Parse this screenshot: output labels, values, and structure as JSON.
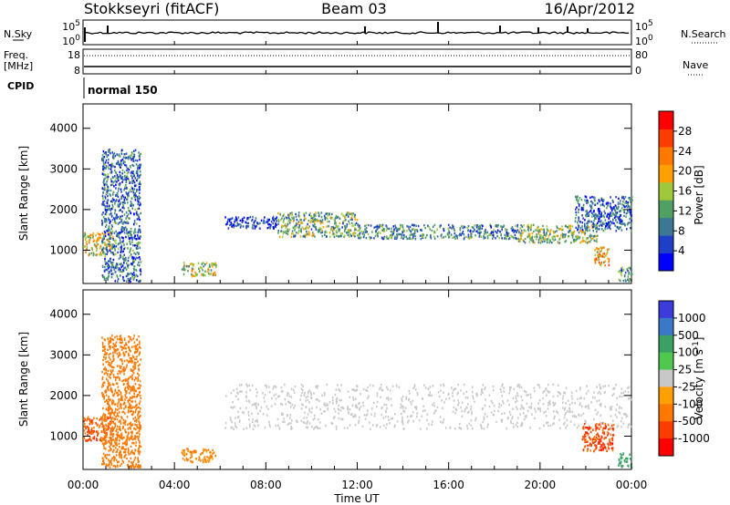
{
  "header": {
    "station": "Stokkseyri (fitACF)",
    "beam": "Beam 03",
    "date": "16/Apr/2012"
  },
  "top_strips": {
    "nsky": {
      "label": "N.Sky",
      "left_top": "10^5",
      "left_bottom": "10^0",
      "right_top": "10^5",
      "right_bottom": "10^0"
    },
    "nsearch_label": "N.Search",
    "freq": {
      "label_line1": "Freq.",
      "label_line2": "[MHz]",
      "left_top": "18",
      "left_bottom": "8",
      "right_top": "80",
      "right_bottom": "0"
    },
    "nave_label": "Nave",
    "cpid": {
      "label": "CPID",
      "value": "normal 150"
    }
  },
  "colors": {
    "power_scale": [
      "#0000ff",
      "#1e3fc8",
      "#3c7896",
      "#50a064",
      "#a0c83c",
      "#ffa000",
      "#ff7800",
      "#ff3c00",
      "#ff0000"
    ],
    "velocity_scale": [
      "#3c3cdc",
      "#3c78c8",
      "#3ca064",
      "#50c850",
      "#c8c8c8",
      "#ffa000",
      "#ff7800",
      "#ff3c00",
      "#ff0000"
    ]
  },
  "chart_data": [
    {
      "type": "heatmap",
      "title": "Power",
      "ylabel": "Slant Range [km]",
      "xlabel": "",
      "x_range": [
        0,
        24
      ],
      "ylim": [
        180,
        4600
      ],
      "yticks": [
        1000,
        2000,
        3000,
        4000
      ],
      "colorbar": {
        "label": "Power [dB]",
        "ticks": [
          "4",
          "8",
          "12",
          "16",
          "20",
          "24",
          "28"
        ],
        "range": [
          0,
          32
        ]
      },
      "regions": [
        {
          "t0": 0.0,
          "t1": 1.3,
          "r0": 900,
          "r1": 1450,
          "value": 18
        },
        {
          "t0": 0.8,
          "t1": 2.5,
          "r0": 250,
          "r1": 3500,
          "value": 8
        },
        {
          "t0": 4.3,
          "t1": 5.8,
          "r0": 380,
          "r1": 720,
          "value": 16
        },
        {
          "t0": 6.2,
          "t1": 8.5,
          "r0": 1550,
          "r1": 1850,
          "value": 5
        },
        {
          "t0": 8.5,
          "t1": 12.0,
          "r0": 1350,
          "r1": 1950,
          "value": 13
        },
        {
          "t0": 12.0,
          "t1": 19.0,
          "r0": 1300,
          "r1": 1650,
          "value": 10
        },
        {
          "t0": 19.0,
          "t1": 22.5,
          "r0": 1200,
          "r1": 1650,
          "value": 14
        },
        {
          "t0": 21.5,
          "t1": 24.0,
          "r0": 1500,
          "r1": 2350,
          "value": 7
        },
        {
          "t0": 22.3,
          "t1": 23.0,
          "r0": 650,
          "r1": 1100,
          "value": 20
        },
        {
          "t0": 23.4,
          "t1": 24.0,
          "r0": 250,
          "r1": 600,
          "value": 10
        }
      ]
    },
    {
      "type": "heatmap",
      "title": "Velocity",
      "ylabel": "Slant Range [km]",
      "xlabel": "Time UT",
      "x_range": [
        0,
        24
      ],
      "ylim": [
        180,
        4600
      ],
      "yticks": [
        1000,
        2000,
        3000,
        4000
      ],
      "xticks": [
        "00:00",
        "04:00",
        "08:00",
        "12:00",
        "16:00",
        "20:00",
        "00:00"
      ],
      "colorbar": {
        "label": "Velocity [m s^-1]",
        "ticks": [
          "1000",
          "500",
          "100",
          "25",
          "-25",
          "-100",
          "-500",
          "-1000"
        ]
      },
      "regions": [
        {
          "t0": 0.0,
          "t1": 1.3,
          "r0": 900,
          "r1": 1500,
          "value": -500
        },
        {
          "t0": 0.8,
          "t1": 2.5,
          "r0": 250,
          "r1": 3500,
          "value": -300
        },
        {
          "t0": 4.3,
          "t1": 5.8,
          "r0": 380,
          "r1": 720,
          "value": -120
        },
        {
          "t0": 6.2,
          "t1": 24.0,
          "r0": 1200,
          "r1": 2300,
          "value": 0
        },
        {
          "t0": 21.8,
          "t1": 23.2,
          "r0": 650,
          "r1": 1350,
          "value": -600
        },
        {
          "t0": 23.4,
          "t1": 24.0,
          "r0": 250,
          "r1": 600,
          "value": 200
        }
      ]
    }
  ]
}
